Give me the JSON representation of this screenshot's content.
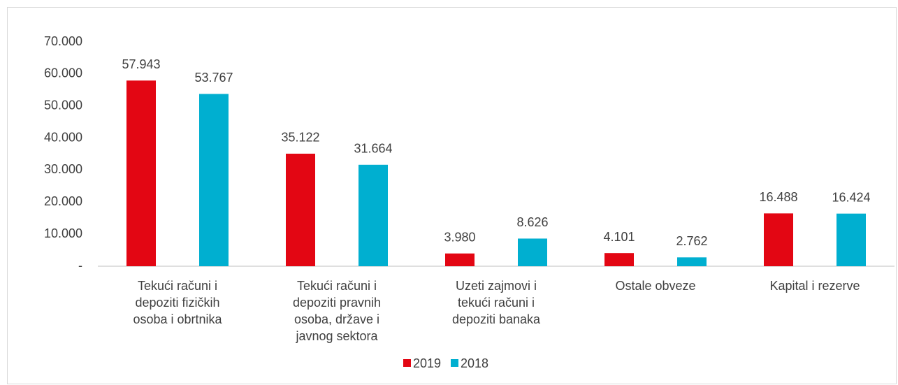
{
  "chart_data": {
    "type": "bar",
    "categories": [
      "Tekući računi i depoziti fizičkih osoba i obrtnika",
      "Tekući računi i depoziti pravnih osoba, države i javnog sektora",
      "Uzeti zajmovi i tekući računi i depoziti banaka",
      "Ostale obveze",
      "Kapital i rezerve"
    ],
    "series": [
      {
        "name": "2019",
        "color": "#e30613",
        "values": [
          57943,
          35122,
          3980,
          4101,
          16488
        ],
        "value_labels": [
          "57.943",
          "35.122",
          "3.980",
          "4.101",
          "16.488"
        ]
      },
      {
        "name": "2018",
        "color": "#00afd0",
        "values": [
          53767,
          31664,
          8626,
          2762,
          16424
        ],
        "value_labels": [
          "53.767",
          "31.664",
          "8.626",
          "2.762",
          "16.424"
        ]
      }
    ],
    "ylim": [
      0,
      70000
    ],
    "yticks": [
      {
        "value": 0,
        "label": "-"
      },
      {
        "value": 10000,
        "label": "10.000"
      },
      {
        "value": 20000,
        "label": "20.000"
      },
      {
        "value": 30000,
        "label": "30.000"
      },
      {
        "value": 40000,
        "label": "40.000"
      },
      {
        "value": 50000,
        "label": "50.000"
      },
      {
        "value": 60000,
        "label": "60.000"
      },
      {
        "value": 70000,
        "label": "70.000"
      }
    ],
    "grid": false,
    "legend": "bottom"
  }
}
